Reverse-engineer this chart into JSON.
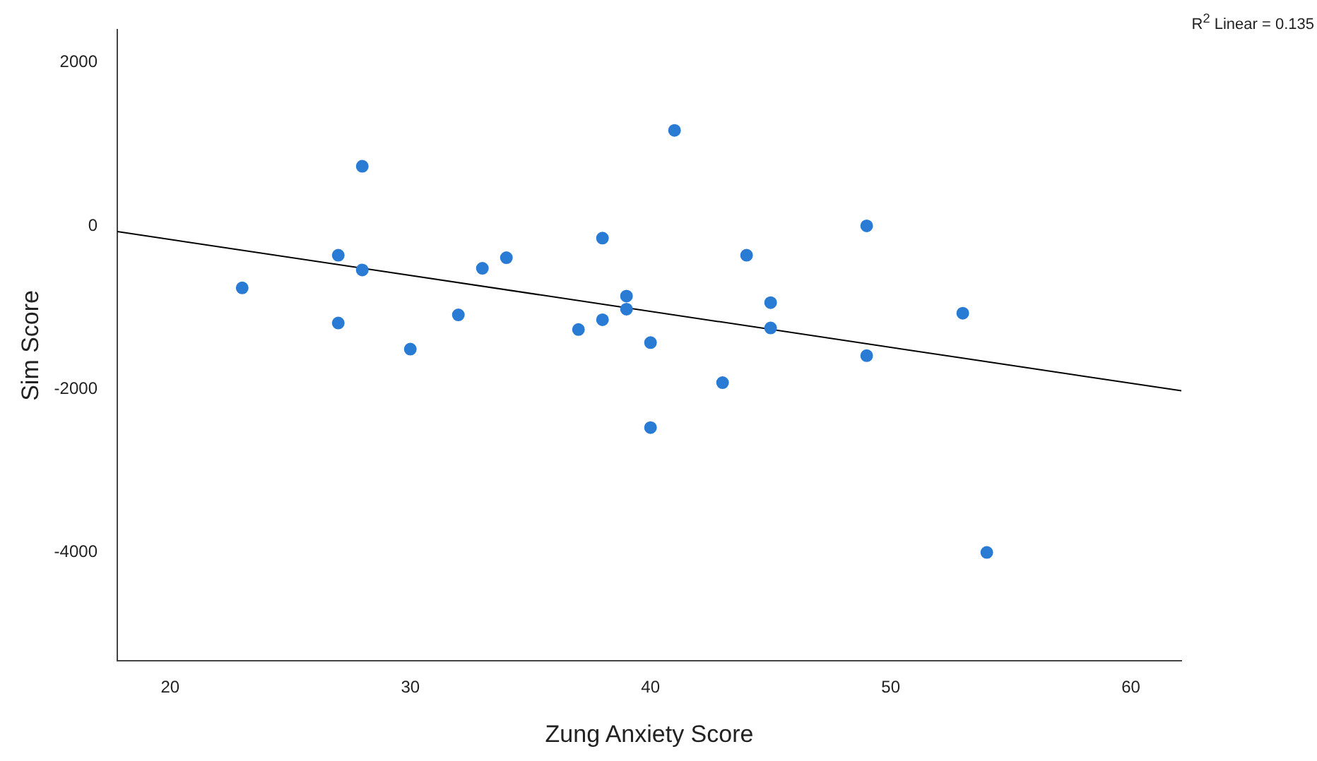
{
  "chart_data": {
    "type": "scatter",
    "xlabel": "Zung Anxiety Score",
    "ylabel": "Sim Score",
    "annotations": [
      "R$^{2}$ Linear = 0.135"
    ],
    "xlim": [
      17.8,
      62.1
    ],
    "xticks": [
      20,
      30,
      40,
      50,
      60
    ],
    "ylim": [
      -5330,
      2400
    ],
    "yticks": [
      2000,
      0,
      -2000,
      -4000
    ],
    "grid": false,
    "legend": false,
    "marker": "circle",
    "series": [
      {
        "type": "scatter",
        "color": "#2a7bd4",
        "x": [
          23,
          27,
          27,
          28,
          28,
          30,
          32,
          33,
          34,
          37,
          38,
          38,
          39,
          39,
          40,
          40,
          41,
          43,
          44,
          45,
          45,
          49,
          49,
          53,
          54
        ],
        "values": [
          -760,
          -360,
          -1190,
          730,
          -540,
          -1510,
          -1090,
          -520,
          -390,
          -1270,
          -150,
          -1150,
          -860,
          -1020,
          -1430,
          -2470,
          1170,
          -1920,
          -360,
          -940,
          -1250,
          0,
          -1590,
          -1070,
          -4000
        ]
      },
      {
        "type": "line",
        "color": "#000000",
        "marker": "none",
        "x": [
          17.8,
          62.1
        ],
        "values": [
          -70,
          -2020
        ]
      }
    ]
  }
}
